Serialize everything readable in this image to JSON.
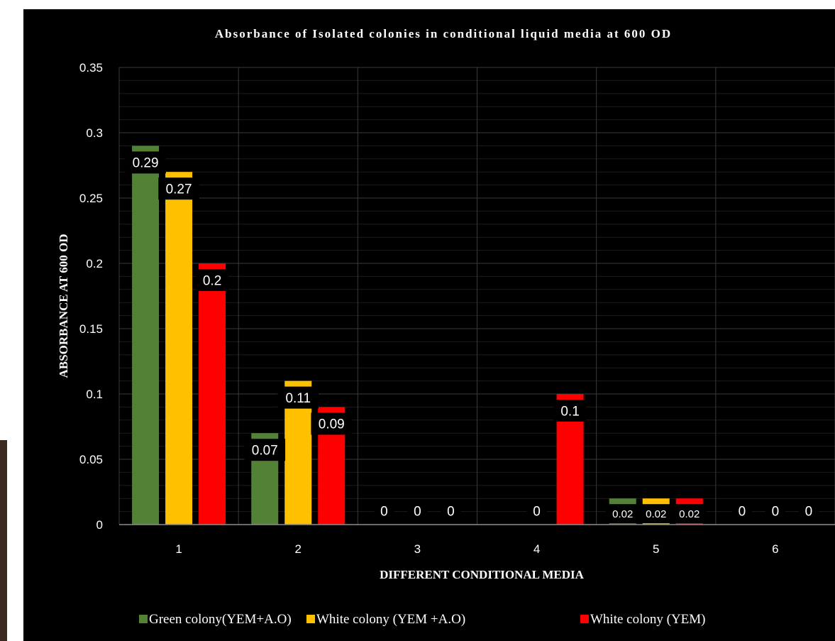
{
  "chart_data": {
    "type": "bar",
    "title": "Absorbance of Isolated colonies in conditional liquid media at 600 OD",
    "xlabel": "DIFFERENT CONDITIONAL MEDIA",
    "ylabel": "ABSORBANCE AT 600 OD",
    "categories": [
      "1",
      "2",
      "3",
      "4",
      "5",
      "6"
    ],
    "ylim": [
      0,
      0.35
    ],
    "yticks": [
      "0",
      "0.05",
      "0.1",
      "0.15",
      "0.2",
      "0.25",
      "0.3",
      "0.35"
    ],
    "grid": true,
    "legend_position": "bottom",
    "series": [
      {
        "name": "Green colony(YEM+A.O)",
        "color": "#538135",
        "values": [
          0.29,
          0.07,
          0,
          null,
          0.02,
          0
        ],
        "labels": [
          "0.29",
          "0.07",
          "0",
          "",
          "0.02",
          "0"
        ]
      },
      {
        "name": "White colony (YEM +A.O)",
        "color": "#ffc000",
        "values": [
          0.27,
          0.11,
          0,
          0,
          0.02,
          0
        ],
        "labels": [
          "0.27",
          "0.11",
          "0",
          "0",
          "0.02",
          "0"
        ]
      },
      {
        "name": "White colony (YEM)",
        "color": "#ff0000",
        "values": [
          0.2,
          0.09,
          0,
          0.1,
          0.02,
          0
        ],
        "labels": [
          "0.2",
          "0.09",
          "0",
          "0.1",
          "0.02",
          "0"
        ]
      }
    ]
  }
}
